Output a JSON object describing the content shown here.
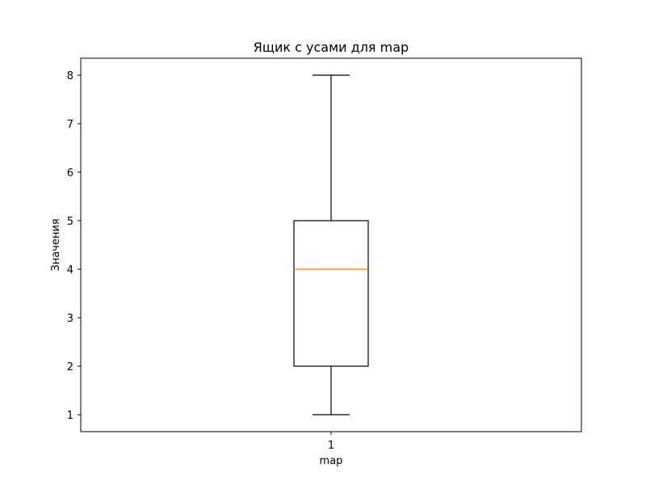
{
  "chart_data": {
    "type": "boxplot",
    "title": "Ящик с усами для map",
    "xlabel": "map",
    "ylabel": "Значения",
    "categories": [
      "1"
    ],
    "series": [
      {
        "whisker_low": 1,
        "q1": 2,
        "median": 4,
        "q3": 5,
        "whisker_high": 8
      }
    ],
    "ylim": [
      0.65,
      8.35
    ],
    "yticks": [
      "1",
      "2",
      "3",
      "4",
      "5",
      "6",
      "7",
      "8"
    ],
    "grid": false,
    "colors": {
      "box": "#000000",
      "median": "#ff7f0e"
    }
  }
}
